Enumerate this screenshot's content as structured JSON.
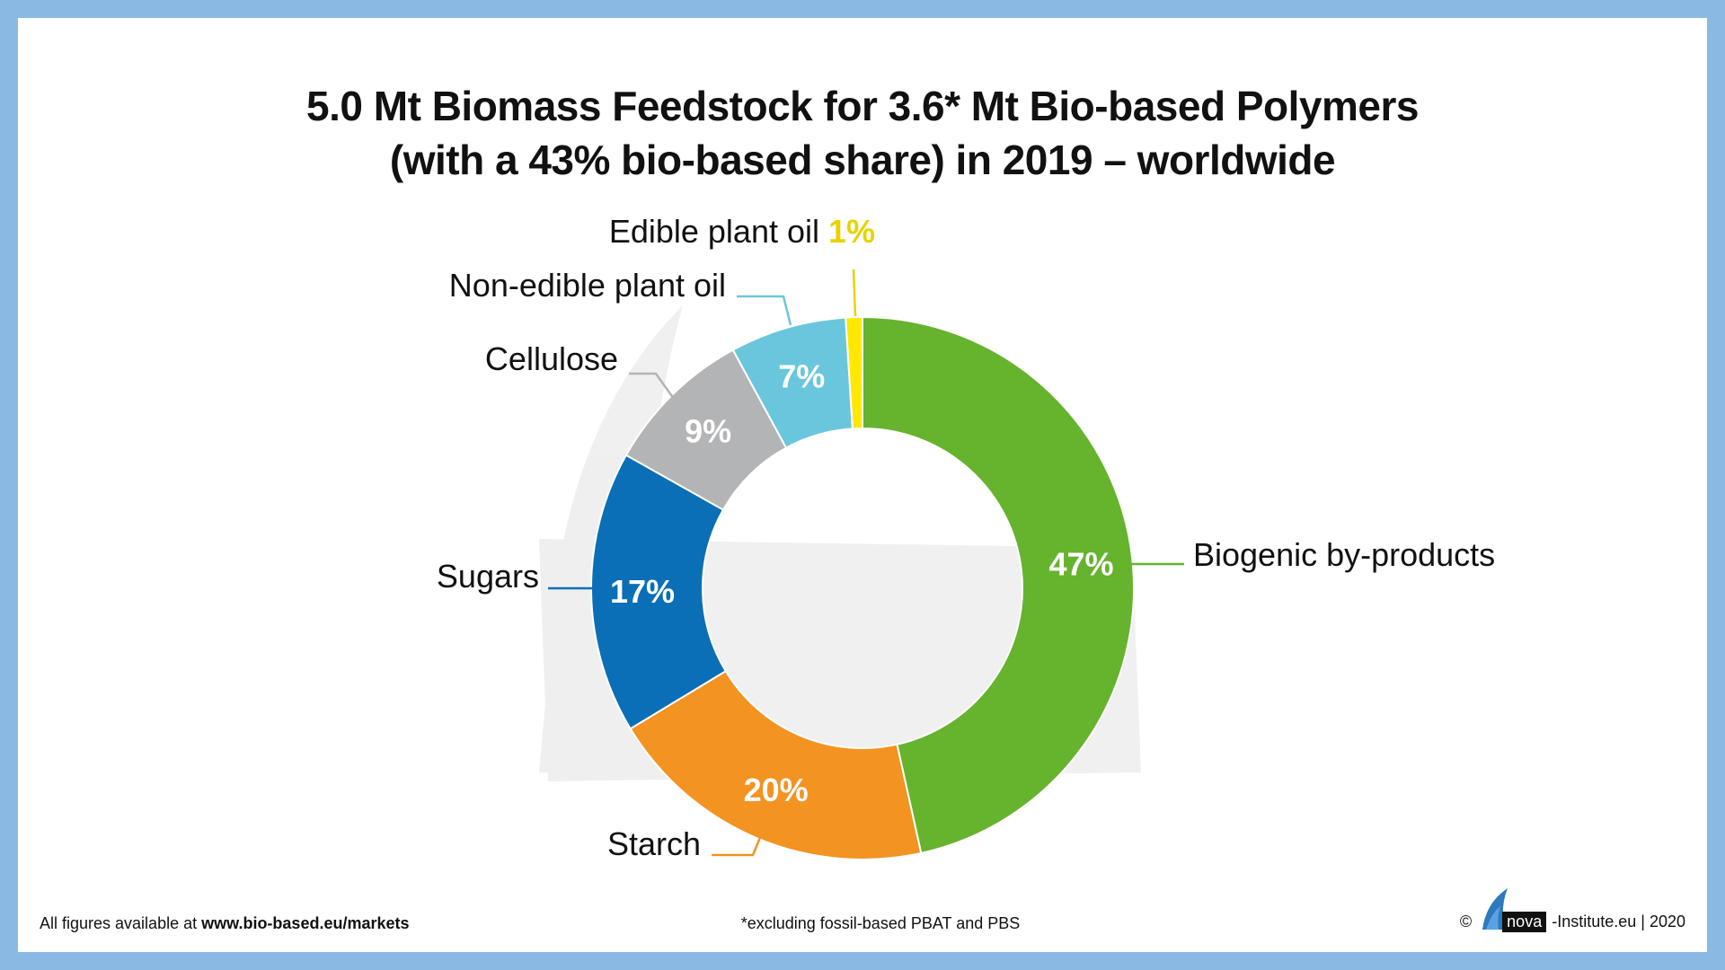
{
  "title": {
    "line1": "5.0 Mt Biomass Feedstock for 3.6* Mt Bio-based Polymers",
    "line2": "(with a 43% bio-based share) in 2019 – worldwide"
  },
  "chart_data": {
    "type": "pie",
    "variant": "donut",
    "title": "5.0 Mt Biomass Feedstock for 3.6* Mt Bio-based Polymers (with a 43% bio-based share) in 2019 – worldwide",
    "start": "12 o'clock, clockwise",
    "slices": [
      {
        "label": "Biogenic by-products",
        "value": 47,
        "value_label": "47%",
        "color": "#66b32e"
      },
      {
        "label": "Starch",
        "value": 20,
        "value_label": "20%",
        "color": "#f39322"
      },
      {
        "label": "Sugars",
        "value": 17,
        "value_label": "17%",
        "color": "#0a6fb7"
      },
      {
        "label": "Cellulose",
        "value": 9,
        "value_label": "9%",
        "color": "#b3b4b6"
      },
      {
        "label": "Non-edible plant oil",
        "value": 7,
        "value_label": "7%",
        "color": "#6ac6dc"
      },
      {
        "label": "Edible plant oil",
        "value": 1,
        "value_label": "1%",
        "color": "#ffe800"
      }
    ]
  },
  "colors": {
    "frame": "#8ab9e4",
    "label_text": "#111111",
    "value_text": "#ffffff",
    "edible_value_text": "#e8d200"
  },
  "footer": {
    "left_prefix": "All figures available at ",
    "left_link": "www.bio-based.eu/markets",
    "center": "*excluding fossil-based PBAT and PBS",
    "copyright": "©",
    "logo_word": "nova",
    "right_suffix": "-Institute.eu | 2020"
  }
}
